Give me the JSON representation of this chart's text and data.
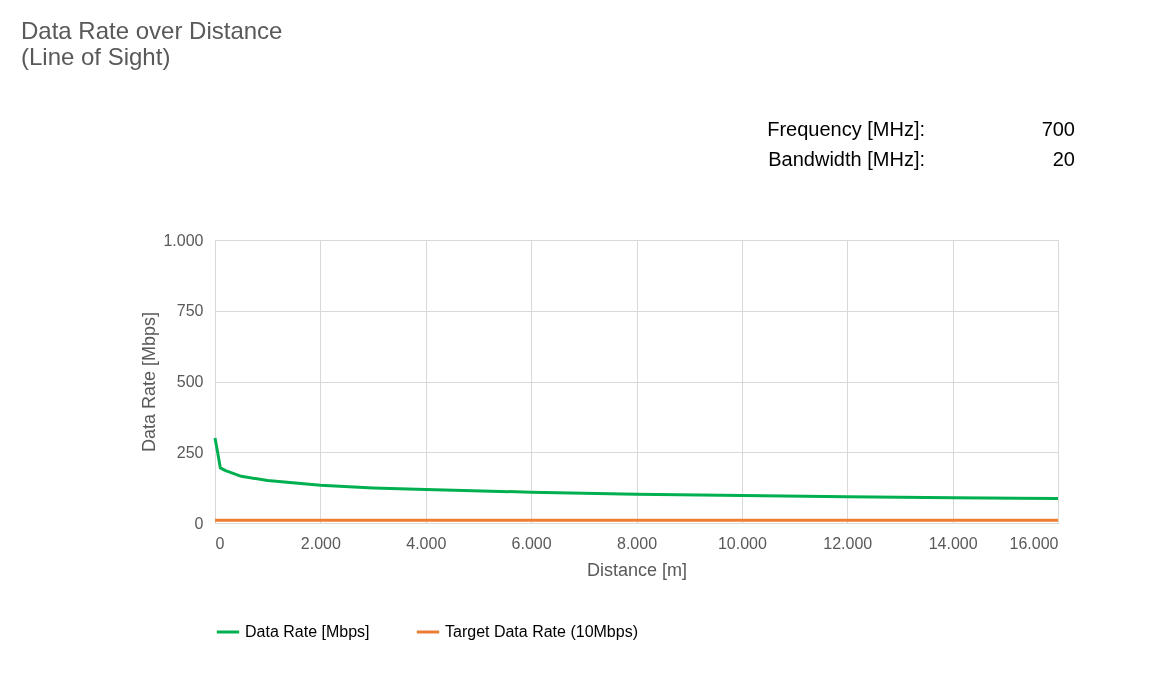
{
  "chart_data": {
    "type": "line",
    "title": [
      "Data Rate over Distance",
      "(Line of Sight)"
    ],
    "xlabel": "Distance [m]",
    "ylabel": "Data Rate [Mbps]",
    "annotations": [
      "Frequency [MHz]:",
      "700",
      "Bandwidth [MHz]:",
      "20"
    ],
    "xlim": [
      0,
      16000
    ],
    "xticks": [
      0,
      {
        "value": 2000,
        "label": "2.000"
      },
      {
        "value": 4000,
        "label": "4.000"
      },
      {
        "value": 6000,
        "label": "6.000"
      },
      {
        "value": 8000,
        "label": "8.000"
      },
      {
        "value": 10000,
        "label": "10.000"
      },
      {
        "value": 12000,
        "label": "12.000"
      },
      {
        "value": 14000,
        "label": "14.000"
      },
      {
        "value": 16000,
        "label": "16.000"
      }
    ],
    "ylim": [
      0,
      1000
    ],
    "yticks": [
      0,
      250,
      500,
      750,
      {
        "value": 1000,
        "label": "1.000"
      }
    ],
    "grid": true,
    "legend": "bottom",
    "marker": "none",
    "line_style": "solid",
    "series": [
      {
        "name": "Data Rate [Mbps]",
        "color": "#00b050",
        "x": [
          0,
          50,
          100,
          200,
          500,
          1000,
          2000,
          3000,
          4000,
          6000,
          8000,
          10000,
          12000,
          14000,
          16000
        ],
        "values": [
          300,
          250,
          195,
          185,
          165,
          150,
          133,
          124,
          118,
          109,
          102,
          97,
          93,
          89,
          87
        ]
      },
      {
        "name": "Target Data Rate (10Mbps)",
        "color": "#ed7d31",
        "x": [
          0,
          16000
        ],
        "values": [
          10,
          10
        ]
      }
    ]
  }
}
